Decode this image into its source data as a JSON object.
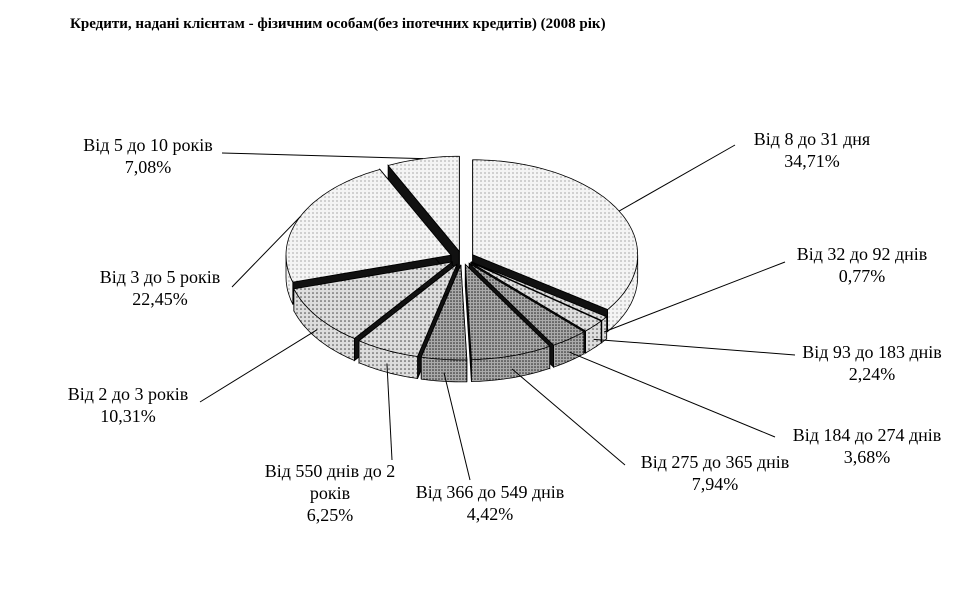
{
  "chart_data": {
    "type": "pie",
    "title": "Кредити, надані клієнтам - фізичним особам(без іпотечних кредитів) (2008 рік)",
    "categories": [
      "Від 8  до 31 дня",
      "Від 32 до 92 днів",
      "Від 93 до 183 днів",
      "Від 184 до 274 днів",
      "Від 275 до 365 днів",
      "Від 366 до 549 днів",
      "Від 550 днів до 2 років",
      "Від 2 до 3 років",
      "Від 3 до 5 років",
      "Від 5 до 10 років"
    ],
    "values": [
      34.71,
      0.77,
      2.24,
      3.68,
      7.94,
      4.42,
      6.25,
      10.31,
      22.45,
      7.08
    ],
    "value_labels": [
      "34,71%",
      "0,77%",
      "2,24%",
      "3,68%",
      "7,94%",
      "4,42%",
      "6,25%",
      "10,31%",
      "22,45%",
      "7,08%"
    ]
  }
}
